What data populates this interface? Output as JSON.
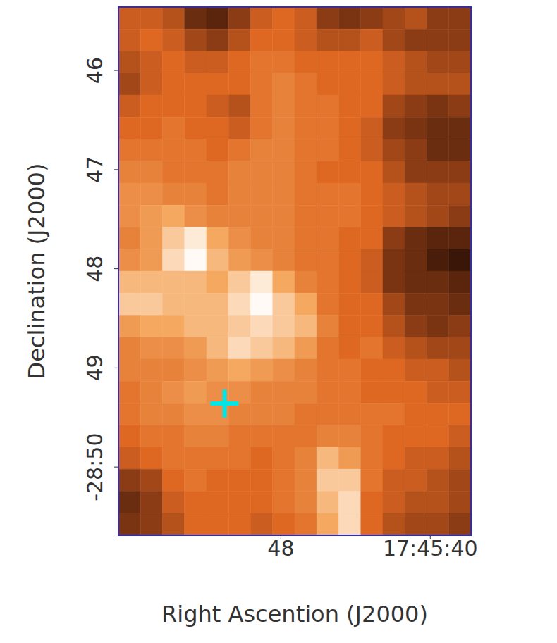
{
  "chart_data": {
    "type": "heatmap",
    "x_label": "Right Ascention (J2000)",
    "y_label": "Declination (J2000)",
    "xlim": [
      56.7,
      37.82
    ],
    "xticks": [
      48,
      {
        "value": 40,
        "label": "17:45:40"
      }
    ],
    "ylim": [
      50.688,
      45.36
    ],
    "yticks": [
      46,
      47,
      48,
      49,
      {
        "value": 50,
        "label": "-28:50"
      }
    ],
    "x_edges": [
      56.7,
      55.52,
      54.34,
      53.16,
      51.98,
      50.8,
      49.62,
      48.44,
      47.26,
      46.08,
      44.9,
      43.72,
      42.54,
      41.36,
      40.18,
      39.0,
      37.82
    ],
    "y_edges": [
      45.36,
      45.582,
      45.804,
      46.026,
      46.248,
      46.47,
      46.692,
      46.914,
      47.136,
      47.358,
      47.58,
      47.802,
      48.024,
      48.246,
      48.468,
      48.69,
      48.912,
      49.134,
      49.356,
      49.578,
      49.8,
      50.022,
      50.244,
      50.466,
      50.688
    ],
    "zlim": [
      0,
      1
    ],
    "z": [
      [
        0.45,
        0.45,
        0.4,
        0.2,
        0.15,
        0.3,
        0.45,
        0.5,
        0.45,
        0.3,
        0.25,
        0.3,
        0.35,
        0.4,
        0.3,
        0.3
      ],
      [
        0.45,
        0.5,
        0.45,
        0.35,
        0.3,
        0.4,
        0.5,
        0.5,
        0.45,
        0.4,
        0.4,
        0.45,
        0.35,
        0.3,
        0.3,
        0.3
      ],
      [
        0.4,
        0.45,
        0.5,
        0.45,
        0.45,
        0.5,
        0.55,
        0.55,
        0.5,
        0.5,
        0.5,
        0.5,
        0.45,
        0.4,
        0.35,
        0.35
      ],
      [
        0.35,
        0.45,
        0.5,
        0.5,
        0.5,
        0.5,
        0.55,
        0.6,
        0.55,
        0.5,
        0.5,
        0.5,
        0.45,
        0.4,
        0.4,
        0.4
      ],
      [
        0.45,
        0.5,
        0.5,
        0.5,
        0.45,
        0.4,
        0.55,
        0.6,
        0.55,
        0.55,
        0.5,
        0.5,
        0.35,
        0.3,
        0.25,
        0.3
      ],
      [
        0.5,
        0.5,
        0.55,
        0.5,
        0.5,
        0.45,
        0.55,
        0.6,
        0.55,
        0.55,
        0.5,
        0.45,
        0.3,
        0.25,
        0.2,
        0.2
      ],
      [
        0.55,
        0.55,
        0.55,
        0.55,
        0.5,
        0.55,
        0.6,
        0.6,
        0.55,
        0.55,
        0.5,
        0.45,
        0.35,
        0.3,
        0.2,
        0.2
      ],
      [
        0.6,
        0.6,
        0.55,
        0.55,
        0.55,
        0.6,
        0.6,
        0.6,
        0.55,
        0.5,
        0.5,
        0.5,
        0.4,
        0.3,
        0.3,
        0.3
      ],
      [
        0.65,
        0.65,
        0.6,
        0.6,
        0.55,
        0.6,
        0.6,
        0.6,
        0.55,
        0.55,
        0.55,
        0.5,
        0.45,
        0.4,
        0.35,
        0.35
      ],
      [
        0.65,
        0.7,
        0.75,
        0.65,
        0.6,
        0.6,
        0.6,
        0.6,
        0.55,
        0.55,
        0.55,
        0.5,
        0.45,
        0.4,
        0.35,
        0.3
      ],
      [
        0.6,
        0.7,
        0.85,
        0.95,
        0.75,
        0.65,
        0.6,
        0.6,
        0.55,
        0.55,
        0.5,
        0.5,
        0.3,
        0.2,
        0.15,
        0.15
      ],
      [
        0.65,
        0.7,
        0.9,
        1.0,
        0.8,
        0.7,
        0.65,
        0.6,
        0.55,
        0.55,
        0.5,
        0.45,
        0.25,
        0.2,
        0.1,
        0.05
      ],
      [
        0.8,
        0.8,
        0.8,
        0.8,
        0.75,
        0.85,
        0.95,
        0.75,
        0.6,
        0.55,
        0.5,
        0.45,
        0.25,
        0.2,
        0.2,
        0.15
      ],
      [
        0.85,
        0.85,
        0.8,
        0.8,
        0.8,
        0.9,
        1.0,
        0.85,
        0.75,
        0.55,
        0.5,
        0.5,
        0.35,
        0.25,
        0.25,
        0.2
      ],
      [
        0.7,
        0.75,
        0.75,
        0.8,
        0.8,
        0.85,
        0.9,
        0.85,
        0.8,
        0.6,
        0.5,
        0.5,
        0.4,
        0.3,
        0.25,
        0.3
      ],
      [
        0.6,
        0.65,
        0.65,
        0.7,
        0.8,
        0.9,
        0.85,
        0.8,
        0.7,
        0.55,
        0.5,
        0.55,
        0.45,
        0.4,
        0.35,
        0.35
      ],
      [
        0.6,
        0.6,
        0.6,
        0.65,
        0.7,
        0.75,
        0.7,
        0.65,
        0.6,
        0.55,
        0.55,
        0.5,
        0.5,
        0.45,
        0.45,
        0.4
      ],
      [
        0.55,
        0.6,
        0.65,
        0.7,
        0.65,
        0.65,
        0.6,
        0.6,
        0.6,
        0.55,
        0.55,
        0.5,
        0.5,
        0.5,
        0.45,
        0.45
      ],
      [
        0.55,
        0.6,
        0.6,
        0.65,
        0.65,
        0.6,
        0.6,
        0.6,
        0.55,
        0.55,
        0.55,
        0.55,
        0.55,
        0.5,
        0.5,
        0.5
      ],
      [
        0.5,
        0.55,
        0.55,
        0.6,
        0.6,
        0.55,
        0.55,
        0.55,
        0.55,
        0.6,
        0.6,
        0.55,
        0.5,
        0.5,
        0.5,
        0.45
      ],
      [
        0.45,
        0.5,
        0.55,
        0.55,
        0.55,
        0.55,
        0.5,
        0.55,
        0.6,
        0.8,
        0.7,
        0.55,
        0.5,
        0.45,
        0.45,
        0.4
      ],
      [
        0.3,
        0.35,
        0.5,
        0.55,
        0.5,
        0.5,
        0.5,
        0.55,
        0.6,
        0.85,
        0.85,
        0.55,
        0.45,
        0.45,
        0.4,
        0.35
      ],
      [
        0.2,
        0.3,
        0.45,
        0.5,
        0.5,
        0.5,
        0.5,
        0.55,
        0.6,
        0.8,
        0.9,
        0.5,
        0.45,
        0.4,
        0.4,
        0.35
      ],
      [
        0.25,
        0.3,
        0.4,
        0.5,
        0.5,
        0.5,
        0.45,
        0.5,
        0.55,
        0.75,
        0.9,
        0.5,
        0.4,
        0.35,
        0.35,
        0.3
      ]
    ],
    "series": [
      {
        "type": "scatter",
        "x": [
          51.02
        ],
        "y": [
          49.36
        ],
        "color": "#00e5e5",
        "marker": "plus"
      }
    ]
  }
}
